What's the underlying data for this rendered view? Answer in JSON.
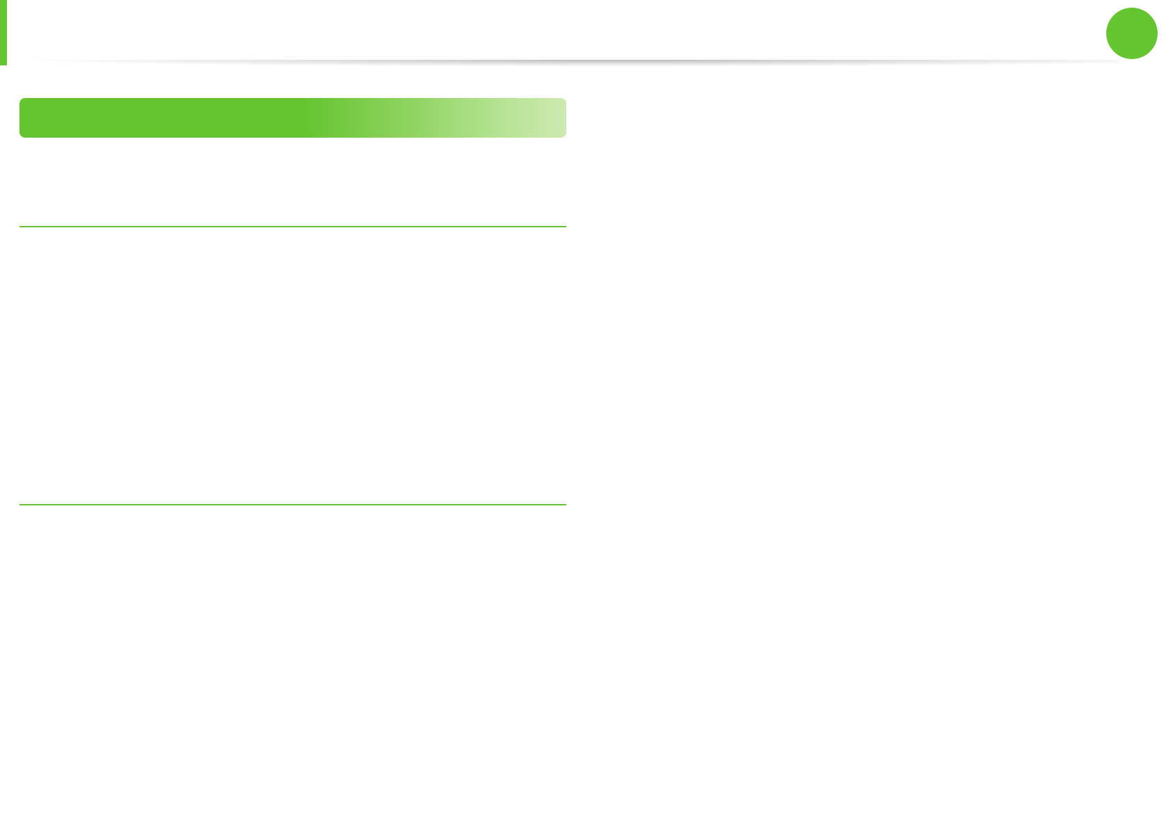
{
  "colors": {
    "accent": "#66c430",
    "banner_gradient_end": "#cdeab0",
    "background": "#ffffff"
  },
  "header": {
    "page_indicator_icon": "green-circle"
  }
}
